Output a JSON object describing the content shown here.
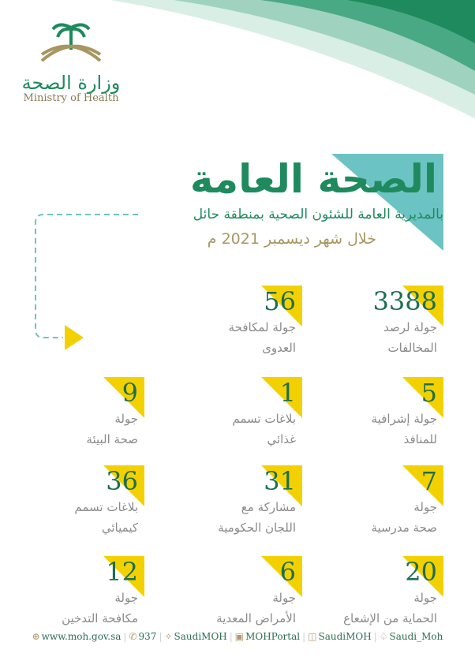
{
  "logo": {
    "arabic": "وزارة الصحة",
    "english": "Ministry of Health"
  },
  "header": {
    "title": "الصحة العامة",
    "subtitle": "بالمديرية العامة للشئون الصحية بمنطقة حائل",
    "period": "خلال شهر ديسمبر 2021 م"
  },
  "colors": {
    "green": "#1e8a5e",
    "yellow": "#f3d100",
    "teal": "#6cc3c3",
    "gold": "#a89660"
  },
  "stats": [
    {
      "value": "3388",
      "line1": "جولة لرصد",
      "line2": "المخالفات"
    },
    {
      "value": "56",
      "line1": "جولة لمكافحة",
      "line2": "العدوى"
    },
    {
      "value": "5",
      "line1": "جولة إشرافية",
      "line2": "للمنافذ"
    },
    {
      "value": "1",
      "line1": "بلاغات تسمم",
      "line2": "غذائي"
    },
    {
      "value": "9",
      "line1": "جولة",
      "line2": "صحة البيئة"
    },
    {
      "value": "7",
      "line1": "جولة",
      "line2": "صحة مدرسية"
    },
    {
      "value": "31",
      "line1": "مشاركة مع",
      "line2": "اللجان الحكومية"
    },
    {
      "value": "36",
      "line1": "بلاغات تسمم",
      "line2": "كيميائي"
    },
    {
      "value": "20",
      "line1": "جولة",
      "line2": "الحماية من الإشعاع"
    },
    {
      "value": "6",
      "line1": "جولة",
      "line2": "الأمراض المعدية"
    },
    {
      "value": "12",
      "line1": "جولة",
      "line2": "مكافحة التدخين"
    }
  ],
  "footer": [
    {
      "icon": "globe-icon",
      "glyph": "⊕",
      "text": "www.moh.gov.sa"
    },
    {
      "icon": "phone-icon",
      "glyph": "✆",
      "text": "937"
    },
    {
      "icon": "twitter-icon",
      "glyph": "✧",
      "text": "SaudiMOH"
    },
    {
      "icon": "youtube-icon",
      "glyph": "▣",
      "text": "MOHPortal"
    },
    {
      "icon": "instagram-icon",
      "glyph": "◫",
      "text": "SaudiMOH"
    },
    {
      "icon": "snapchat-icon",
      "glyph": "♤",
      "text": "Saudi_Moh"
    }
  ]
}
